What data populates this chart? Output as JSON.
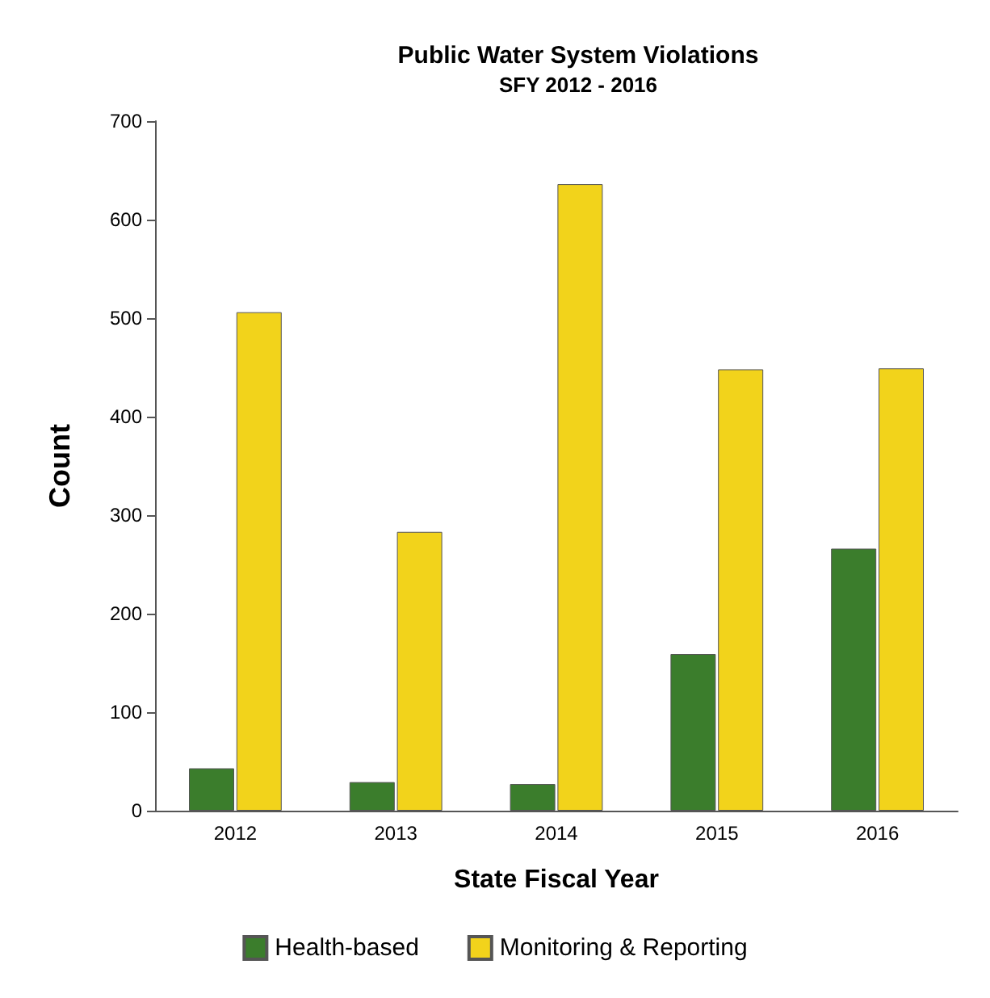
{
  "chart_data": {
    "type": "bar",
    "title": "Public Water System Violations",
    "subtitle": "SFY 2012 - 2016",
    "xlabel": "State Fiscal Year",
    "ylabel": "Count",
    "categories": [
      "2012",
      "2013",
      "2014",
      "2015",
      "2016"
    ],
    "series": [
      {
        "name": "Health-based",
        "color": "#3b7d2c",
        "values": [
          43,
          29,
          27,
          159,
          266
        ]
      },
      {
        "name": "Monitoring & Reporting",
        "color": "#f2d31b",
        "values": [
          506,
          283,
          636,
          448,
          449
        ]
      }
    ],
    "ylim": [
      0,
      700
    ],
    "yticks": [
      0,
      100,
      200,
      300,
      400,
      500,
      600,
      700
    ],
    "grid": false,
    "legend": "bottom"
  }
}
